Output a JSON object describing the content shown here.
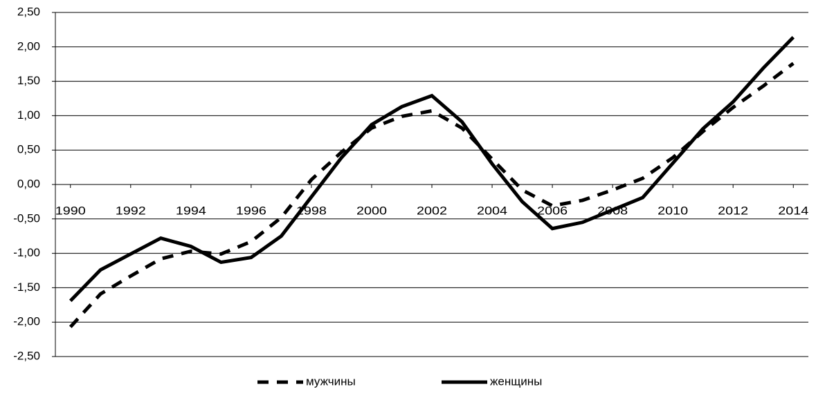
{
  "chart_data": {
    "type": "line",
    "x": [
      1990,
      1991,
      1992,
      1993,
      1994,
      1995,
      1996,
      1997,
      1998,
      1999,
      2000,
      2001,
      2002,
      2003,
      2004,
      2005,
      2006,
      2007,
      2008,
      2009,
      2010,
      2011,
      2012,
      2013,
      2014
    ],
    "series": [
      {
        "name": "мужчины",
        "color": "#000000",
        "dash": true,
        "values": [
          -2.07,
          -1.59,
          -1.33,
          -1.08,
          -0.97,
          -1.01,
          -0.83,
          -0.48,
          0.07,
          0.47,
          0.82,
          0.99,
          1.07,
          0.82,
          0.37,
          -0.08,
          -0.31,
          -0.23,
          -0.08,
          0.09,
          0.39,
          0.77,
          1.12,
          1.43,
          1.76
        ]
      },
      {
        "name": "женщины",
        "color": "#000000",
        "dash": false,
        "values": [
          -1.69,
          -1.24,
          -1.01,
          -0.78,
          -0.9,
          -1.13,
          -1.06,
          -0.75,
          -0.18,
          0.39,
          0.87,
          1.13,
          1.29,
          0.91,
          0.3,
          -0.25,
          -0.64,
          -0.55,
          -0.37,
          -0.19,
          0.31,
          0.81,
          1.2,
          1.69,
          2.14
        ]
      }
    ],
    "xlim": [
      1989.5,
      2014.5
    ],
    "xticks": [
      1990,
      1992,
      1994,
      1996,
      1998,
      2000,
      2002,
      2004,
      2006,
      2008,
      2010,
      2012,
      2014
    ],
    "ylim": [
      -2.5,
      2.5
    ],
    "yticks": [
      {
        "value": -2.5,
        "label": "-2,50"
      },
      {
        "value": -2,
        "label": "-2,00"
      },
      {
        "value": -1.5,
        "label": "-1,50"
      },
      {
        "value": -1,
        "label": "-1,00"
      },
      {
        "value": -0.5,
        "label": "-0,50"
      },
      {
        "value": 0,
        "label": "0,00"
      },
      {
        "value": 0.5,
        "label": "0,50"
      },
      {
        "value": 1,
        "label": "1,00"
      },
      {
        "value": 1.5,
        "label": "1,50"
      },
      {
        "value": 2,
        "label": "2,00"
      },
      {
        "value": 2.5,
        "label": "2,50"
      }
    ],
    "grid": true,
    "legend": "bottom"
  }
}
